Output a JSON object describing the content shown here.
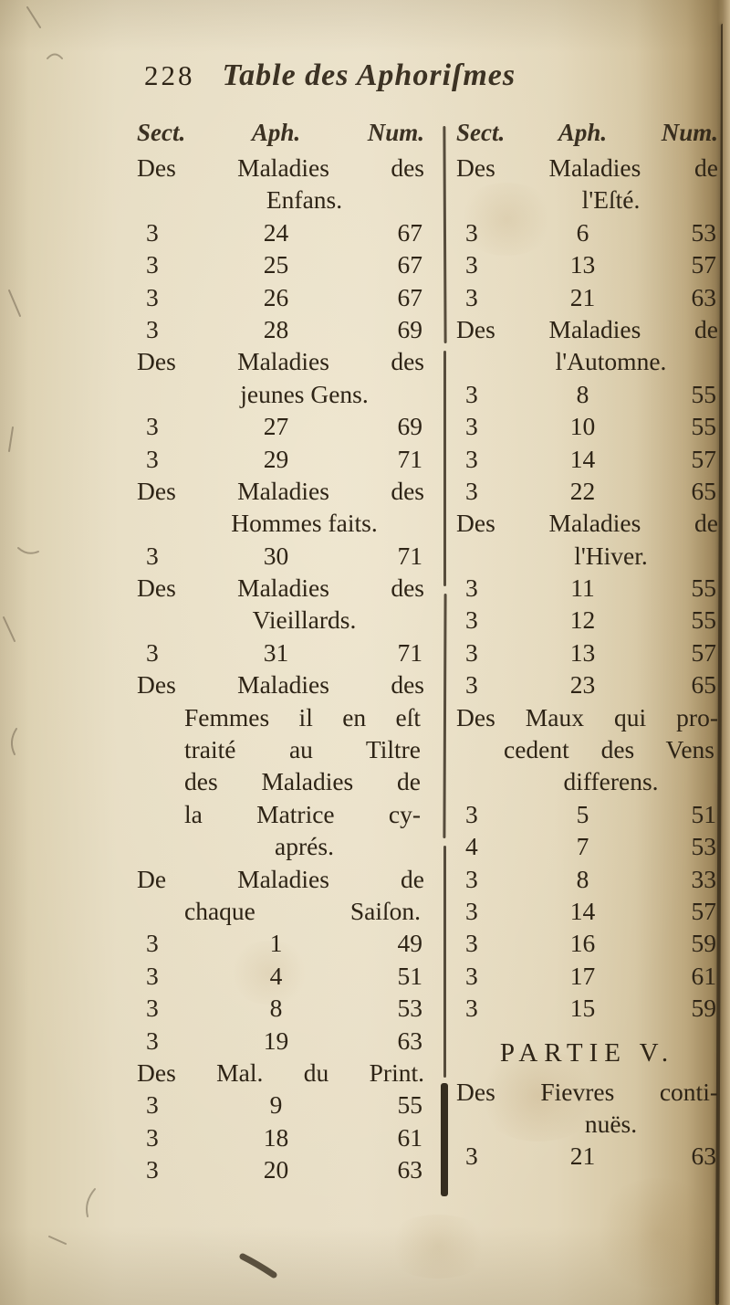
{
  "page": {
    "number": "228",
    "title": "Table des Aphoriſmes"
  },
  "colors": {
    "paper": "#e6dcc2",
    "ink": "#2e2416",
    "edge": "#382c1a"
  },
  "table": {
    "columns": [
      {
        "side": "left",
        "header": {
          "sect": "Sect.",
          "aph": "Aph.",
          "num": "Num."
        },
        "entries": [
          {
            "type": "heading",
            "lines": [
              "Des Maladies des",
              "Enfans."
            ]
          },
          {
            "type": "row",
            "sect": "3",
            "aph": "24",
            "num": "67"
          },
          {
            "type": "row",
            "sect": "3",
            "aph": "25",
            "num": "67"
          },
          {
            "type": "row",
            "sect": "3",
            "aph": "26",
            "num": "67"
          },
          {
            "type": "row",
            "sect": "3",
            "aph": "28",
            "num": "69"
          },
          {
            "type": "heading",
            "lines": [
              "Des Maladies des",
              "jeunes Gens."
            ]
          },
          {
            "type": "row",
            "sect": "3",
            "aph": "27",
            "num": "69"
          },
          {
            "type": "row",
            "sect": "3",
            "aph": "29",
            "num": "71"
          },
          {
            "type": "heading",
            "lines": [
              "Des Maladies des",
              "Hommes faits."
            ]
          },
          {
            "type": "row",
            "sect": "3",
            "aph": "30",
            "num": "71"
          },
          {
            "type": "heading",
            "lines": [
              "Des Maladies des",
              "Vieillards."
            ]
          },
          {
            "type": "row",
            "sect": "3",
            "aph": "31",
            "num": "71"
          },
          {
            "type": "heading",
            "lines": [
              "Des Maladies des",
              "Femmes il en eſt",
              "traité au Tiltre",
              "des Maladies de",
              "la Matrice cy-",
              "aprés."
            ]
          },
          {
            "type": "heading",
            "lines": [
              "De Maladies de",
              "chaque Saiſon."
            ]
          },
          {
            "type": "row",
            "sect": "3",
            "aph": "1",
            "num": "49"
          },
          {
            "type": "row",
            "sect": "3",
            "aph": "4",
            "num": "51"
          },
          {
            "type": "row",
            "sect": "3",
            "aph": "8",
            "num": "53"
          },
          {
            "type": "row",
            "sect": "3",
            "aph": "19",
            "num": "63"
          },
          {
            "type": "heading",
            "lines": [
              "Des Mal. du Print."
            ]
          },
          {
            "type": "row",
            "sect": "3",
            "aph": "9",
            "num": "55"
          },
          {
            "type": "row",
            "sect": "3",
            "aph": "18",
            "num": "61"
          },
          {
            "type": "row",
            "sect": "3",
            "aph": "20",
            "num": "63"
          }
        ]
      },
      {
        "side": "right",
        "header": {
          "sect": "Sect.",
          "aph": "Aph.",
          "num": "Num."
        },
        "entries": [
          {
            "type": "heading",
            "lines": [
              "Des Maladies de",
              "l'Eſté."
            ]
          },
          {
            "type": "row",
            "sect": "3",
            "aph": "6",
            "num": "53"
          },
          {
            "type": "row",
            "sect": "3",
            "aph": "13",
            "num": "57"
          },
          {
            "type": "row",
            "sect": "3",
            "aph": "21",
            "num": "63"
          },
          {
            "type": "heading",
            "lines": [
              "Des Maladies de",
              "l'Automne."
            ]
          },
          {
            "type": "row",
            "sect": "3",
            "aph": "8",
            "num": "55"
          },
          {
            "type": "row",
            "sect": "3",
            "aph": "10",
            "num": "55"
          },
          {
            "type": "row",
            "sect": "3",
            "aph": "14",
            "num": "57"
          },
          {
            "type": "row",
            "sect": "3",
            "aph": "22",
            "num": "65"
          },
          {
            "type": "heading",
            "lines": [
              "Des Maladies de",
              "l'Hiver."
            ]
          },
          {
            "type": "row",
            "sect": "3",
            "aph": "11",
            "num": "55"
          },
          {
            "type": "row",
            "sect": "3",
            "aph": "12",
            "num": "55"
          },
          {
            "type": "row",
            "sect": "3",
            "aph": "13",
            "num": "57"
          },
          {
            "type": "row",
            "sect": "3",
            "aph": "23",
            "num": "65"
          },
          {
            "type": "heading",
            "lines": [
              "Des Maux qui pro-",
              "cedent des Vens",
              "differens."
            ]
          },
          {
            "type": "row",
            "sect": "3",
            "aph": "5",
            "num": "51"
          },
          {
            "type": "row",
            "sect": "4",
            "aph": "7",
            "num": "53"
          },
          {
            "type": "row",
            "sect": "3",
            "aph": "8",
            "num": "33"
          },
          {
            "type": "row",
            "sect": "3",
            "aph": "14",
            "num": "57"
          },
          {
            "type": "row",
            "sect": "3",
            "aph": "16",
            "num": "59"
          },
          {
            "type": "row",
            "sect": "3",
            "aph": "17",
            "num": "61"
          },
          {
            "type": "row",
            "sect": "3",
            "aph": "15",
            "num": "59"
          },
          {
            "type": "partie",
            "text": "PARTIE V."
          },
          {
            "type": "heading",
            "lines": [
              "Des Fievres conti-",
              "nuës."
            ]
          },
          {
            "type": "row",
            "sect": "3",
            "aph": "21",
            "num": "63"
          }
        ]
      }
    ]
  }
}
